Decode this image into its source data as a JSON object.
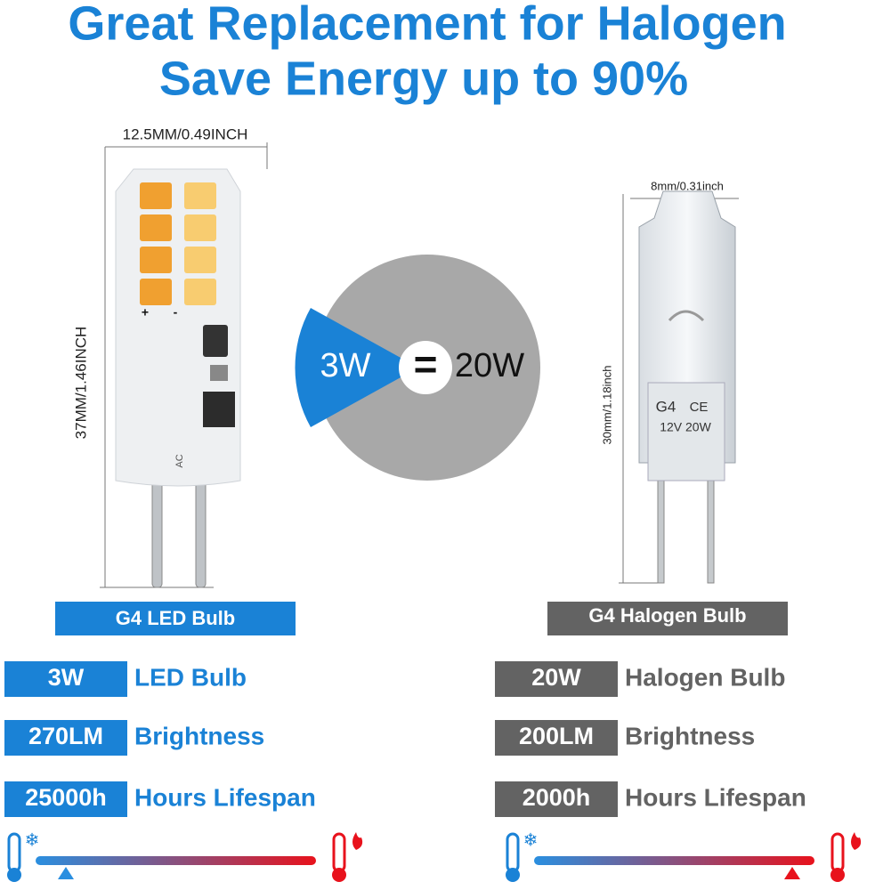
{
  "title": {
    "line1": "Great Replacement for Halogen",
    "line2": "Save Energy up to 90%"
  },
  "comparison": {
    "left": "3W",
    "equals": "=",
    "right": "20W"
  },
  "led": {
    "width_label": "12.5MM/0.49INCH",
    "height_label": "37MM/1.46INCH",
    "markings": [
      "+",
      "-",
      "AC"
    ],
    "label": "G4 LED Bulb",
    "specs": [
      {
        "value": "3W",
        "text": "LED Bulb"
      },
      {
        "value": "270LM",
        "text": "Brightness"
      },
      {
        "value": "25000h",
        "text": "Hours Lifespan"
      }
    ]
  },
  "halogen": {
    "width_label": "8mm/0.31inch",
    "height_label": "30mm/1.18inch",
    "markings": [
      "G4",
      "CE",
      "12V 20W"
    ],
    "label": "G4 Halogen Bulb",
    "specs": [
      {
        "value": "20W",
        "text": "Halogen Bulb"
      },
      {
        "value": "200LM",
        "text": "Brightness"
      },
      {
        "value": "2000h",
        "text": "Hours Lifespan"
      }
    ]
  }
}
